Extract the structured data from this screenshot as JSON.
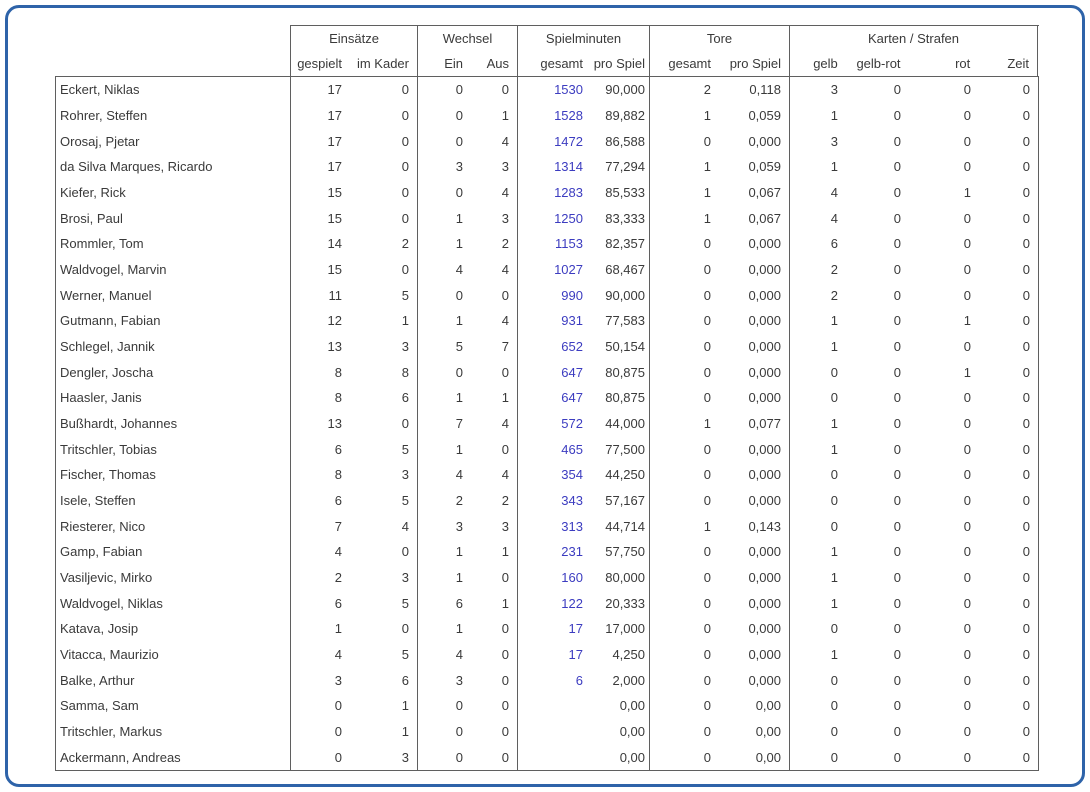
{
  "colors": {
    "frame": "#2e63a9",
    "border": "#5f5f5f",
    "text": "#3a3a3a",
    "minutes_total_value": "#3c3cc0"
  },
  "table": {
    "column_groups": [
      {
        "key": "einsaetze",
        "label": "Einsätze",
        "columns": [
          "gespielt",
          "im Kader"
        ]
      },
      {
        "key": "wechsel",
        "label": "Wechsel",
        "columns": [
          "Ein",
          "Aus"
        ]
      },
      {
        "key": "spielminuten",
        "label": "Spielminuten",
        "columns": [
          "gesamt",
          "pro Spiel"
        ]
      },
      {
        "key": "tore",
        "label": "Tore",
        "columns": [
          "gesamt",
          "pro Spiel"
        ]
      },
      {
        "key": "karten-strafen",
        "label": "Karten / Strafen",
        "columns": [
          "gelb",
          "gelb-rot",
          "rot",
          "Zeit"
        ]
      }
    ],
    "rows": [
      {
        "name": "Eckert, Niklas",
        "values": [
          "17",
          "0",
          "0",
          "0",
          "1530",
          "90,000",
          "2",
          "0,118",
          "3",
          "0",
          "0",
          "0"
        ]
      },
      {
        "name": "Rohrer, Steffen",
        "values": [
          "17",
          "0",
          "0",
          "1",
          "1528",
          "89,882",
          "1",
          "0,059",
          "1",
          "0",
          "0",
          "0"
        ]
      },
      {
        "name": "Orosaj, Pjetar",
        "values": [
          "17",
          "0",
          "0",
          "4",
          "1472",
          "86,588",
          "0",
          "0,000",
          "3",
          "0",
          "0",
          "0"
        ]
      },
      {
        "name": "da Silva Marques, Ricardo",
        "values": [
          "17",
          "0",
          "3",
          "3",
          "1314",
          "77,294",
          "1",
          "0,059",
          "1",
          "0",
          "0",
          "0"
        ]
      },
      {
        "name": "Kiefer, Rick",
        "values": [
          "15",
          "0",
          "0",
          "4",
          "1283",
          "85,533",
          "1",
          "0,067",
          "4",
          "0",
          "1",
          "0"
        ]
      },
      {
        "name": "Brosi, Paul",
        "values": [
          "15",
          "0",
          "1",
          "3",
          "1250",
          "83,333",
          "1",
          "0,067",
          "4",
          "0",
          "0",
          "0"
        ]
      },
      {
        "name": "Rommler, Tom",
        "values": [
          "14",
          "2",
          "1",
          "2",
          "1153",
          "82,357",
          "0",
          "0,000",
          "6",
          "0",
          "0",
          "0"
        ]
      },
      {
        "name": "Waldvogel, Marvin",
        "values": [
          "15",
          "0",
          "4",
          "4",
          "1027",
          "68,467",
          "0",
          "0,000",
          "2",
          "0",
          "0",
          "0"
        ]
      },
      {
        "name": "Werner, Manuel",
        "values": [
          "11",
          "5",
          "0",
          "0",
          "990",
          "90,000",
          "0",
          "0,000",
          "2",
          "0",
          "0",
          "0"
        ]
      },
      {
        "name": "Gutmann, Fabian",
        "values": [
          "12",
          "1",
          "1",
          "4",
          "931",
          "77,583",
          "0",
          "0,000",
          "1",
          "0",
          "1",
          "0"
        ]
      },
      {
        "name": "Schlegel, Jannik",
        "values": [
          "13",
          "3",
          "5",
          "7",
          "652",
          "50,154",
          "0",
          "0,000",
          "1",
          "0",
          "0",
          "0"
        ]
      },
      {
        "name": "Dengler, Joscha",
        "values": [
          "8",
          "8",
          "0",
          "0",
          "647",
          "80,875",
          "0",
          "0,000",
          "0",
          "0",
          "1",
          "0"
        ]
      },
      {
        "name": "Haasler, Janis",
        "values": [
          "8",
          "6",
          "1",
          "1",
          "647",
          "80,875",
          "0",
          "0,000",
          "0",
          "0",
          "0",
          "0"
        ]
      },
      {
        "name": "Bußhardt, Johannes",
        "values": [
          "13",
          "0",
          "7",
          "4",
          "572",
          "44,000",
          "1",
          "0,077",
          "1",
          "0",
          "0",
          "0"
        ]
      },
      {
        "name": "Tritschler, Tobias",
        "values": [
          "6",
          "5",
          "1",
          "0",
          "465",
          "77,500",
          "0",
          "0,000",
          "1",
          "0",
          "0",
          "0"
        ]
      },
      {
        "name": "Fischer, Thomas",
        "values": [
          "8",
          "3",
          "4",
          "4",
          "354",
          "44,250",
          "0",
          "0,000",
          "0",
          "0",
          "0",
          "0"
        ]
      },
      {
        "name": "Isele, Steffen",
        "values": [
          "6",
          "5",
          "2",
          "2",
          "343",
          "57,167",
          "0",
          "0,000",
          "0",
          "0",
          "0",
          "0"
        ]
      },
      {
        "name": "Riesterer, Nico",
        "values": [
          "7",
          "4",
          "3",
          "3",
          "313",
          "44,714",
          "1",
          "0,143",
          "0",
          "0",
          "0",
          "0"
        ]
      },
      {
        "name": "Gamp, Fabian",
        "values": [
          "4",
          "0",
          "1",
          "1",
          "231",
          "57,750",
          "0",
          "0,000",
          "1",
          "0",
          "0",
          "0"
        ]
      },
      {
        "name": "Vasiljevic, Mirko",
        "values": [
          "2",
          "3",
          "1",
          "0",
          "160",
          "80,000",
          "0",
          "0,000",
          "1",
          "0",
          "0",
          "0"
        ]
      },
      {
        "name": "Waldvogel, Niklas",
        "values": [
          "6",
          "5",
          "6",
          "1",
          "122",
          "20,333",
          "0",
          "0,000",
          "1",
          "0",
          "0",
          "0"
        ]
      },
      {
        "name": "Katava, Josip",
        "values": [
          "1",
          "0",
          "1",
          "0",
          "17",
          "17,000",
          "0",
          "0,000",
          "0",
          "0",
          "0",
          "0"
        ]
      },
      {
        "name": "Vitacca, Maurizio",
        "values": [
          "4",
          "5",
          "4",
          "0",
          "17",
          "4,250",
          "0",
          "0,000",
          "1",
          "0",
          "0",
          "0"
        ]
      },
      {
        "name": "Balke, Arthur",
        "values": [
          "3",
          "6",
          "3",
          "0",
          "6",
          "2,000",
          "0",
          "0,000",
          "0",
          "0",
          "0",
          "0"
        ]
      },
      {
        "name": "Samma, Sam",
        "values": [
          "0",
          "1",
          "0",
          "0",
          "",
          "0,00",
          "0",
          "0,00",
          "0",
          "0",
          "0",
          "0"
        ]
      },
      {
        "name": "Tritschler, Markus",
        "values": [
          "0",
          "1",
          "0",
          "0",
          "",
          "0,00",
          "0",
          "0,00",
          "0",
          "0",
          "0",
          "0"
        ]
      },
      {
        "name": "Ackermann, Andreas",
        "values": [
          "0",
          "3",
          "0",
          "0",
          "",
          "0,00",
          "0",
          "0,00",
          "0",
          "0",
          "0",
          "0"
        ]
      }
    ]
  }
}
